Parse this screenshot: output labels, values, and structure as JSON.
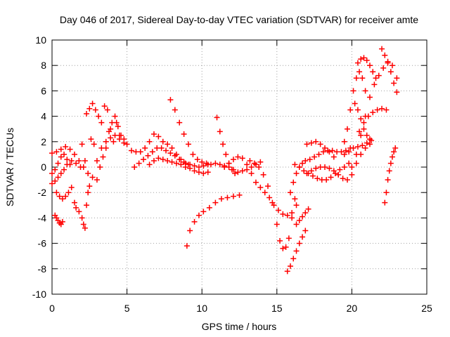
{
  "chart_data": {
    "type": "scatter",
    "title": "Day 046 of 2017, Sidereal Day-to-day VTEC variation (SDTVAR) for receiver amte",
    "xlabel": "GPS time / hours",
    "ylabel": "SDTVAR / TECUs",
    "xlim": [
      0,
      25
    ],
    "ylim": [
      -10,
      10
    ],
    "xticks": [
      0,
      5,
      10,
      15,
      20,
      25
    ],
    "yticks": [
      -10,
      -8,
      -6,
      -4,
      -2,
      0,
      2,
      4,
      6,
      8,
      10
    ],
    "grid": true,
    "marker": "+",
    "marker_color": "#ff0000",
    "series": [
      {
        "x": [
          0.0,
          0.3,
          0.6,
          0.9,
          1.2,
          1.5,
          1.8,
          2.1,
          2.4,
          2.7,
          3.0,
          3.3,
          3.6,
          3.9,
          4.2,
          4.5,
          4.8
        ],
        "y": [
          1.1,
          1.2,
          1.4,
          1.6,
          1.4,
          1.0,
          0.5,
          0.0,
          -0.5,
          -0.8,
          0.5,
          1.5,
          2.0,
          2.3,
          2.5,
          2.2,
          1.9
        ]
      },
      {
        "x": [
          0.0,
          0.2,
          0.4,
          0.6,
          0.8,
          1.0,
          1.3,
          1.6,
          1.9
        ],
        "y": [
          -1.3,
          -1.1,
          -0.8,
          -0.5,
          -0.2,
          0.2,
          0.5,
          0.3,
          0.0
        ]
      },
      {
        "x": [
          0.0,
          0.2,
          0.4,
          0.6,
          0.8,
          1.0,
          1.2
        ],
        "y": [
          -0.5,
          -0.2,
          0.3,
          0.8,
          1.0,
          0.6,
          0.2
        ]
      },
      {
        "x": [
          0.2,
          0.3,
          0.4,
          0.5,
          0.6,
          0.7
        ],
        "y": [
          -3.8,
          -4.0,
          -4.2,
          -4.4,
          -4.5,
          -4.3
        ]
      },
      {
        "x": [
          0.3,
          0.5,
          0.7,
          0.9,
          1.1,
          1.3
        ],
        "y": [
          -2.0,
          -2.3,
          -2.5,
          -2.3,
          -2.0,
          -1.6
        ]
      },
      {
        "x": [
          1.5,
          1.6,
          1.8,
          2.0,
          2.1,
          2.2,
          2.3,
          2.4,
          2.5,
          2.2,
          2.0,
          2.6,
          2.8
        ],
        "y": [
          -2.8,
          -3.2,
          -3.5,
          -4.0,
          -4.5,
          -4.8,
          -3.0,
          -2.0,
          -1.5,
          0.5,
          1.8,
          2.2,
          1.8
        ]
      },
      {
        "x": [
          2.3,
          2.5,
          2.7,
          2.9,
          3.1,
          3.3,
          3.5,
          3.7,
          3.9,
          4.1,
          4.3,
          4.5
        ],
        "y": [
          4.2,
          4.6,
          5.0,
          4.5,
          4.0,
          3.5,
          4.8,
          4.5,
          3.0,
          2.0,
          3.5,
          2.5
        ]
      },
      {
        "x": [
          3.0,
          3.2,
          3.4,
          3.6,
          3.8,
          4.0,
          4.2,
          4.4
        ],
        "y": [
          -1.0,
          0.0,
          0.8,
          1.5,
          2.8,
          3.5,
          4.0,
          3.2
        ]
      },
      {
        "x": [
          4.6,
          4.8,
          5.0,
          5.3,
          5.6,
          5.9,
          6.2,
          6.5,
          6.8,
          7.1,
          7.4,
          7.7,
          8.0,
          8.3,
          8.6,
          8.9,
          9.2,
          9.5,
          9.8,
          10.1,
          10.4
        ],
        "y": [
          2.5,
          2.2,
          1.8,
          1.3,
          1.2,
          1.2,
          1.5,
          2.0,
          2.6,
          2.4,
          2.0,
          1.8,
          1.5,
          1.0,
          0.6,
          0.3,
          0.2,
          0.1,
          0.0,
          0.1,
          0.2
        ]
      },
      {
        "x": [
          5.5,
          5.8,
          6.1,
          6.4,
          6.7,
          7.0,
          7.3,
          7.6,
          7.9,
          8.2,
          8.5,
          8.8,
          9.1
        ],
        "y": [
          0.0,
          0.3,
          0.6,
          0.9,
          1.2,
          1.5,
          1.5,
          1.3,
          1.1,
          0.9,
          0.6,
          0.4,
          0.2
        ]
      },
      {
        "x": [
          6.5,
          6.8,
          7.1,
          7.4,
          7.7,
          8.0,
          8.3,
          8.6,
          8.9,
          9.2,
          9.5,
          9.8,
          10.1,
          10.4
        ],
        "y": [
          0.2,
          0.5,
          0.7,
          0.6,
          0.5,
          0.4,
          0.3,
          0.2,
          0.0,
          -0.1,
          -0.3,
          -0.4,
          -0.5,
          -0.4
        ]
      },
      {
        "x": [
          7.9,
          8.2,
          8.5,
          8.8,
          9.1,
          9.4,
          9.7,
          10.0,
          10.3,
          10.6,
          10.9,
          11.2,
          11.5,
          11.8,
          12.1,
          12.4,
          12.7,
          13.0,
          13.3,
          13.6,
          13.9
        ],
        "y": [
          5.3,
          4.5,
          3.5,
          2.6,
          1.8,
          1.0,
          0.6,
          0.4,
          0.3,
          0.2,
          0.3,
          0.2,
          0.1,
          0.0,
          -0.2,
          -0.4,
          -0.3,
          -0.2,
          0.0,
          0.2,
          0.4
        ]
      },
      {
        "x": [
          9.0,
          9.2,
          9.5,
          9.8,
          10.1,
          10.5,
          10.9,
          11.3,
          11.7,
          12.1,
          12.5
        ],
        "y": [
          -6.2,
          -5.0,
          -4.3,
          -3.8,
          -3.5,
          -3.2,
          -2.8,
          -2.5,
          -2.4,
          -2.3,
          -2.2
        ]
      },
      {
        "x": [
          11.0,
          11.2,
          11.4,
          11.6,
          11.8,
          12.0,
          12.2
        ],
        "y": [
          3.9,
          2.8,
          1.8,
          1.0,
          0.3,
          -0.2,
          -0.5
        ]
      },
      {
        "x": [
          11.5,
          11.8,
          12.1,
          12.4,
          12.7,
          13.0,
          13.3,
          13.6,
          13.9,
          14.2,
          14.5,
          14.8,
          15.1,
          15.4,
          15.7,
          16.0,
          16.3
        ],
        "y": [
          0.0,
          0.3,
          0.6,
          0.8,
          0.7,
          0.2,
          -0.5,
          -1.2,
          -1.6,
          -2.0,
          -2.4,
          -3.0,
          -3.4,
          -3.7,
          -3.8,
          -3.6,
          -3.0
        ]
      },
      {
        "x": [
          13.2,
          13.5,
          13.8,
          14.1,
          14.4,
          14.7,
          15.0,
          15.2,
          15.4,
          15.6,
          15.8,
          16.0,
          16.2
        ],
        "y": [
          0.5,
          0.3,
          0.0,
          -0.6,
          -1.5,
          -2.8,
          -4.5,
          -5.8,
          -6.4,
          -6.3,
          -5.6,
          -4.0,
          -2.5
        ]
      },
      {
        "x": [
          15.7,
          15.9,
          16.1,
          16.3,
          16.5,
          16.7,
          16.9
        ],
        "y": [
          -8.2,
          -7.8,
          -7.2,
          -6.6,
          -6.0,
          -5.5,
          -5.0
        ]
      },
      {
        "x": [
          16.3,
          16.5,
          16.7,
          16.9,
          17.1
        ],
        "y": [
          -4.5,
          -4.2,
          -3.9,
          -3.6,
          -3.3
        ]
      },
      {
        "x": [
          15.9,
          16.1,
          16.3,
          16.5,
          16.7,
          16.9,
          17.2,
          17.5,
          17.8,
          18.1,
          18.4,
          18.7,
          19.0,
          19.3,
          19.6,
          19.9
        ],
        "y": [
          -2.0,
          -1.2,
          -0.5,
          0.0,
          0.3,
          0.5,
          0.6,
          0.8,
          1.0,
          1.2,
          1.3,
          1.3,
          1.2,
          1.2,
          1.3,
          1.5
        ]
      },
      {
        "x": [
          17.0,
          17.3,
          17.6,
          17.9,
          18.2,
          18.5,
          18.8,
          19.1,
          19.4,
          19.7,
          20.0,
          20.3,
          20.6,
          20.9,
          21.2
        ],
        "y": [
          -0.5,
          -0.3,
          -0.1,
          0.0,
          0.0,
          -0.1,
          -0.3,
          -0.6,
          -0.9,
          -1.0,
          -0.6,
          0.3,
          1.0,
          1.5,
          1.8
        ]
      },
      {
        "x": [
          16.2,
          16.5,
          16.8,
          17.1,
          17.4,
          17.7,
          18.0,
          18.3,
          18.6,
          18.9,
          19.2,
          19.5,
          19.8
        ],
        "y": [
          0.2,
          0.0,
          -0.3,
          -0.5,
          -0.7,
          -0.9,
          -1.0,
          -1.0,
          -0.8,
          -0.5,
          -0.2,
          0.0,
          0.3
        ]
      },
      {
        "x": [
          17.0,
          17.3,
          17.6,
          17.9,
          18.2,
          18.5,
          18.8
        ],
        "y": [
          1.8,
          1.9,
          2.0,
          1.8,
          1.5,
          1.2,
          0.8
        ]
      },
      {
        "x": [
          19.5,
          19.7,
          19.9,
          20.1,
          20.3,
          20.5,
          20.7,
          20.9
        ],
        "y": [
          2.0,
          3.0,
          4.5,
          6.0,
          7.0,
          7.5,
          7.0,
          6.0
        ]
      },
      {
        "x": [
          20.0,
          20.3,
          20.6,
          20.9,
          21.2,
          21.5,
          21.8,
          22.1,
          22.4,
          22.7,
          23.0
        ],
        "y": [
          0.0,
          1.0,
          2.5,
          4.0,
          5.5,
          6.5,
          7.2,
          7.8,
          8.2,
          8.0,
          7.0
        ]
      },
      {
        "x": [
          20.4,
          20.6,
          20.8,
          21.0,
          21.2,
          21.4,
          21.6
        ],
        "y": [
          8.2,
          8.5,
          8.6,
          8.4,
          8.0,
          7.5,
          7.0
        ]
      },
      {
        "x": [
          20.2,
          20.4,
          20.6,
          20.8,
          21.0,
          21.2
        ],
        "y": [
          5.0,
          4.5,
          3.8,
          3.0,
          2.5,
          2.2
        ]
      },
      {
        "x": [
          20.5,
          20.8,
          21.1,
          21.4,
          21.7,
          22.0,
          22.3
        ],
        "y": [
          2.8,
          3.5,
          4.0,
          4.3,
          4.5,
          4.6,
          4.5
        ]
      },
      {
        "x": [
          22.0,
          22.2,
          22.4,
          22.6,
          22.8,
          23.0
        ],
        "y": [
          9.3,
          8.8,
          8.3,
          7.5,
          6.6,
          5.9
        ]
      },
      {
        "x": [
          22.2,
          22.3,
          22.4,
          22.5,
          22.6,
          22.7,
          22.8,
          22.9
        ],
        "y": [
          -2.8,
          -2.0,
          -1.0,
          -0.3,
          0.3,
          0.8,
          1.2,
          1.5
        ]
      },
      {
        "x": [
          19.5,
          19.8,
          20.1,
          20.4,
          20.7,
          21.0,
          21.3
        ],
        "y": [
          1.0,
          1.2,
          1.5,
          1.6,
          1.7,
          1.9,
          2.1
        ]
      }
    ]
  }
}
